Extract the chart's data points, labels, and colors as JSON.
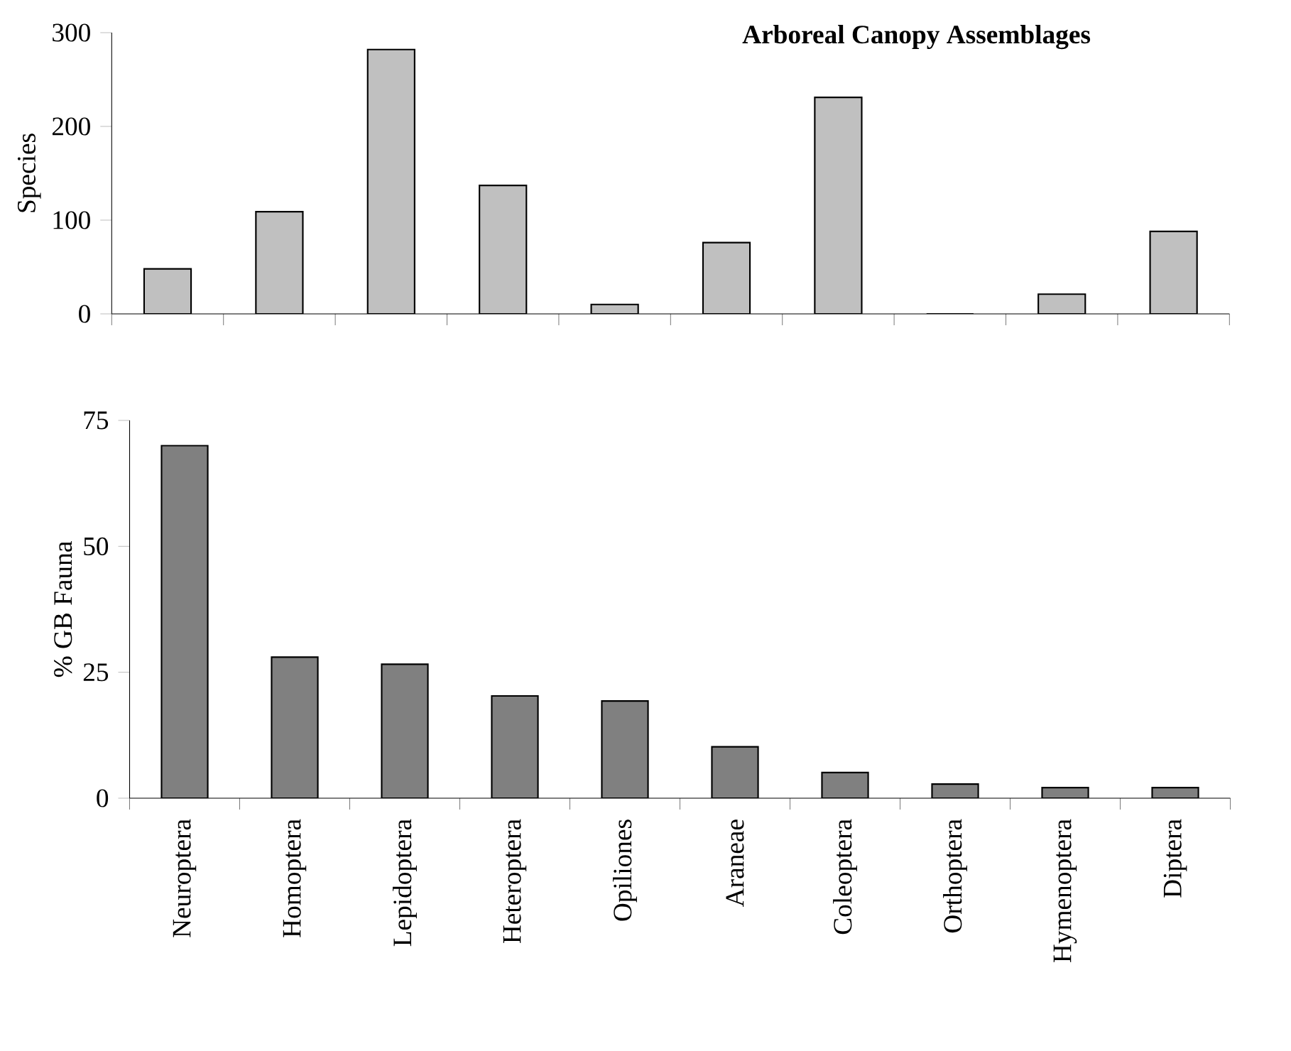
{
  "chart_data": [
    {
      "type": "bar",
      "title": "Arboreal Canopy Assemblages",
      "ylabel": "Species",
      "categories": [
        null,
        null,
        null,
        null,
        null,
        null,
        null,
        null,
        null,
        null
      ],
      "values": [
        48,
        109,
        282,
        137,
        10,
        76,
        231,
        0,
        21,
        88
      ],
      "color": "#c0c0c0",
      "ylim": [
        0,
        300
      ],
      "yticks": [
        0,
        100,
        200,
        300
      ]
    },
    {
      "type": "bar",
      "ylabel": "% GB Fauna",
      "categories": [
        "Neuroptera",
        "Homoptera",
        "Lepidoptera",
        "Heteroptera",
        "Opiliones",
        "Araneae",
        "Coleoptera",
        "Orthoptera",
        "Hymenoptera",
        "Diptera"
      ],
      "values": [
        70,
        28,
        26.6,
        20.3,
        19.3,
        10.2,
        5.1,
        2.8,
        2.1,
        2.1
      ],
      "color": "#808080",
      "ylim": [
        0,
        75
      ],
      "yticks": [
        0,
        25,
        50,
        75
      ]
    }
  ]
}
